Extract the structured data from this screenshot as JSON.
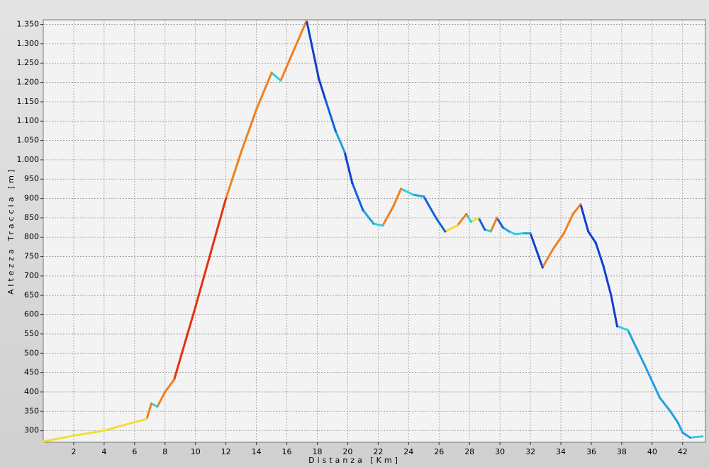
{
  "chart_data": {
    "type": "line",
    "x_label": "Distanza [Km]",
    "y_label": "Altezza Traccia [m]",
    "xlim": [
      0,
      43.5
    ],
    "ylim": [
      270,
      1362
    ],
    "xticks": [
      2,
      4,
      6,
      8,
      10,
      12,
      14,
      16,
      18,
      20,
      22,
      24,
      26,
      28,
      30,
      32,
      34,
      36,
      38,
      40,
      42
    ],
    "yticks": [
      300,
      350,
      400,
      450,
      500,
      550,
      600,
      650,
      700,
      750,
      800,
      850,
      900,
      950,
      {
        "value": 1000,
        "label": "1.000"
      },
      {
        "value": 1050,
        "label": "1.050"
      },
      {
        "value": 1100,
        "label": "1.100"
      },
      {
        "value": 1150,
        "label": "1.150"
      },
      {
        "value": 1200,
        "label": "1.200"
      },
      {
        "value": 1250,
        "label": "1.250"
      },
      {
        "value": 1300,
        "label": "1.300"
      },
      {
        "value": 1350,
        "label": "1.350"
      }
    ],
    "grid": true,
    "series": [
      {
        "x": [
          0,
          2,
          4,
          6,
          6.8,
          7.1,
          7.5,
          8,
          8.6,
          10,
          11,
          12,
          13,
          14,
          15,
          15.6,
          16.2,
          17.3,
          18.1,
          18.5,
          19.2,
          19.8,
          20.3,
          21,
          21.7,
          22.3,
          23,
          23.5,
          24.3,
          25,
          25.8,
          26.4,
          27.2,
          27.8,
          28.1,
          28.6,
          29,
          29.4,
          29.8,
          30.2,
          30.6,
          31,
          31.5,
          32,
          32.8,
          33.5,
          34.2,
          34.8,
          35.3,
          35.8,
          36.3,
          36.8,
          37.3,
          37.7,
          38.4,
          39.5,
          40.5,
          41.2,
          41.7,
          42,
          42.5,
          43.3
        ],
        "values": [
          272,
          287,
          300,
          322,
          330,
          370,
          362,
          400,
          432,
          620,
          760,
          900,
          1020,
          1130,
          1225,
          1205,
          1260,
          1360,
          1210,
          1160,
          1075,
          1020,
          940,
          870,
          835,
          830,
          880,
          925,
          910,
          905,
          850,
          815,
          830,
          860,
          840,
          850,
          820,
          815,
          850,
          825,
          815,
          808,
          810,
          810,
          722,
          770,
          810,
          860,
          885,
          815,
          785,
          725,
          650,
          570,
          560,
          470,
          385,
          350,
          320,
          295,
          282,
          285
        ],
        "colors": [
          "#f0e030",
          "#f0e030",
          "#f0e030",
          "#f0e030",
          "#f0e030",
          "#f08020",
          "#30d0e0",
          "#f08020",
          "#f08020",
          "#e83010",
          "#e83010",
          "#e83010",
          "#f08020",
          "#f08020",
          "#f08020",
          "#30d0e0",
          "#f08020",
          "#f08020",
          "#1040d0",
          "#1040d0",
          "#1060e0",
          "#20a0e0",
          "#1040d0",
          "#1060e0",
          "#20a0e0",
          "#30d0e0",
          "#f08020",
          "#f08020",
          "#30d0e0",
          "#20a0e0",
          "#1060e0",
          "#1060e0",
          "#f0e030",
          "#f08020",
          "#30d0e0",
          "#f0e030",
          "#1060e0",
          "#30d0e0",
          "#f08020",
          "#1060e0",
          "#20a0e0",
          "#30d0e0",
          "#30d0e0",
          "#20a0e0",
          "#1040d0",
          "#f08020",
          "#f08020",
          "#f08020",
          "#f08020",
          "#1040d0",
          "#1040d0",
          "#1040d0",
          "#1040d0",
          "#1040d0",
          "#30d0e0",
          "#20a0e0",
          "#20a0e0",
          "#20a0e0",
          "#20a0e0",
          "#20a0e0",
          "#20a0e0",
          "#30d0e0"
        ]
      }
    ]
  }
}
